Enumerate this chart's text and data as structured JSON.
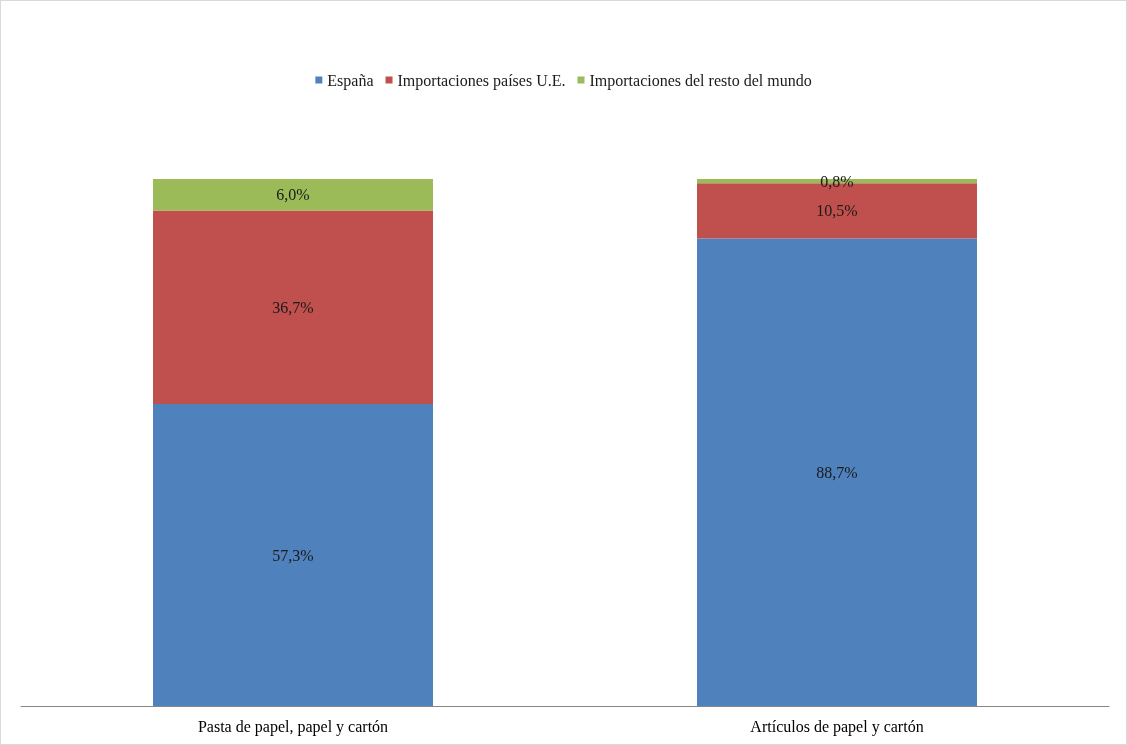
{
  "chart_data": {
    "type": "bar",
    "stacked": true,
    "legend": "top",
    "categories": [
      "Pasta de papel, papel y cartón",
      "Artículos de papel y cartón"
    ],
    "series": [
      {
        "name": "España",
        "color": "#4f81bd",
        "values": [
          57.3,
          88.7
        ],
        "value_labels": [
          "57,3%",
          "88,7%"
        ]
      },
      {
        "name": "Importaciones países U.E.",
        "color": "#c0504d",
        "values": [
          36.7,
          10.5
        ],
        "value_labels": [
          "36,7%",
          "10,5%"
        ]
      },
      {
        "name": "Importaciones del resto del mundo",
        "color": "#9bbb59",
        "values": [
          6.0,
          0.8
        ],
        "value_labels": [
          "6,0%",
          "0,8%"
        ]
      }
    ]
  }
}
